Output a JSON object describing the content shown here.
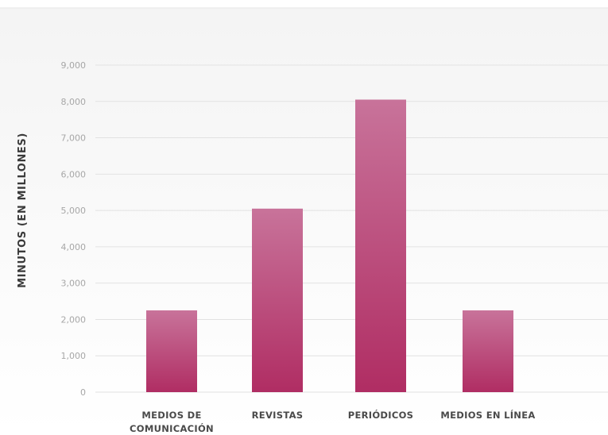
{
  "chart_data": {
    "type": "bar",
    "title": "",
    "xlabel": "",
    "ylabel": "MINUTOS (EN MILLONES)",
    "categories": [
      "MEDIOS DE COMUNICACIÓN",
      "REVISTAS",
      "PERIÓDICOS",
      "MEDIOS EN LÍNEA"
    ],
    "category_lines": [
      [
        "MEDIOS DE",
        "COMUNICACIÓN"
      ],
      [
        "REVISTAS"
      ],
      [
        "PERIÓDICOS"
      ],
      [
        "MEDIOS EN LÍNEA"
      ]
    ],
    "values": [
      2250,
      5050,
      8050,
      2250
    ],
    "ylim": [
      0,
      9000
    ],
    "yticks": [
      0,
      1000,
      2000,
      3000,
      4000,
      5000,
      6000,
      7000,
      8000,
      9000
    ],
    "ytick_labels": [
      "0",
      "1,000",
      "2,000",
      "3,000",
      "4,000",
      "5,000",
      "6,000",
      "7,000",
      "8,000",
      "9,000"
    ],
    "grid": true,
    "legend": "none",
    "colors": {
      "bar_top": "#c8739a",
      "bar_bottom": "#b02d63",
      "grid": "#e2e2e2",
      "background_top": "#f4f4f4",
      "background_bottom": "#ffffff"
    }
  }
}
